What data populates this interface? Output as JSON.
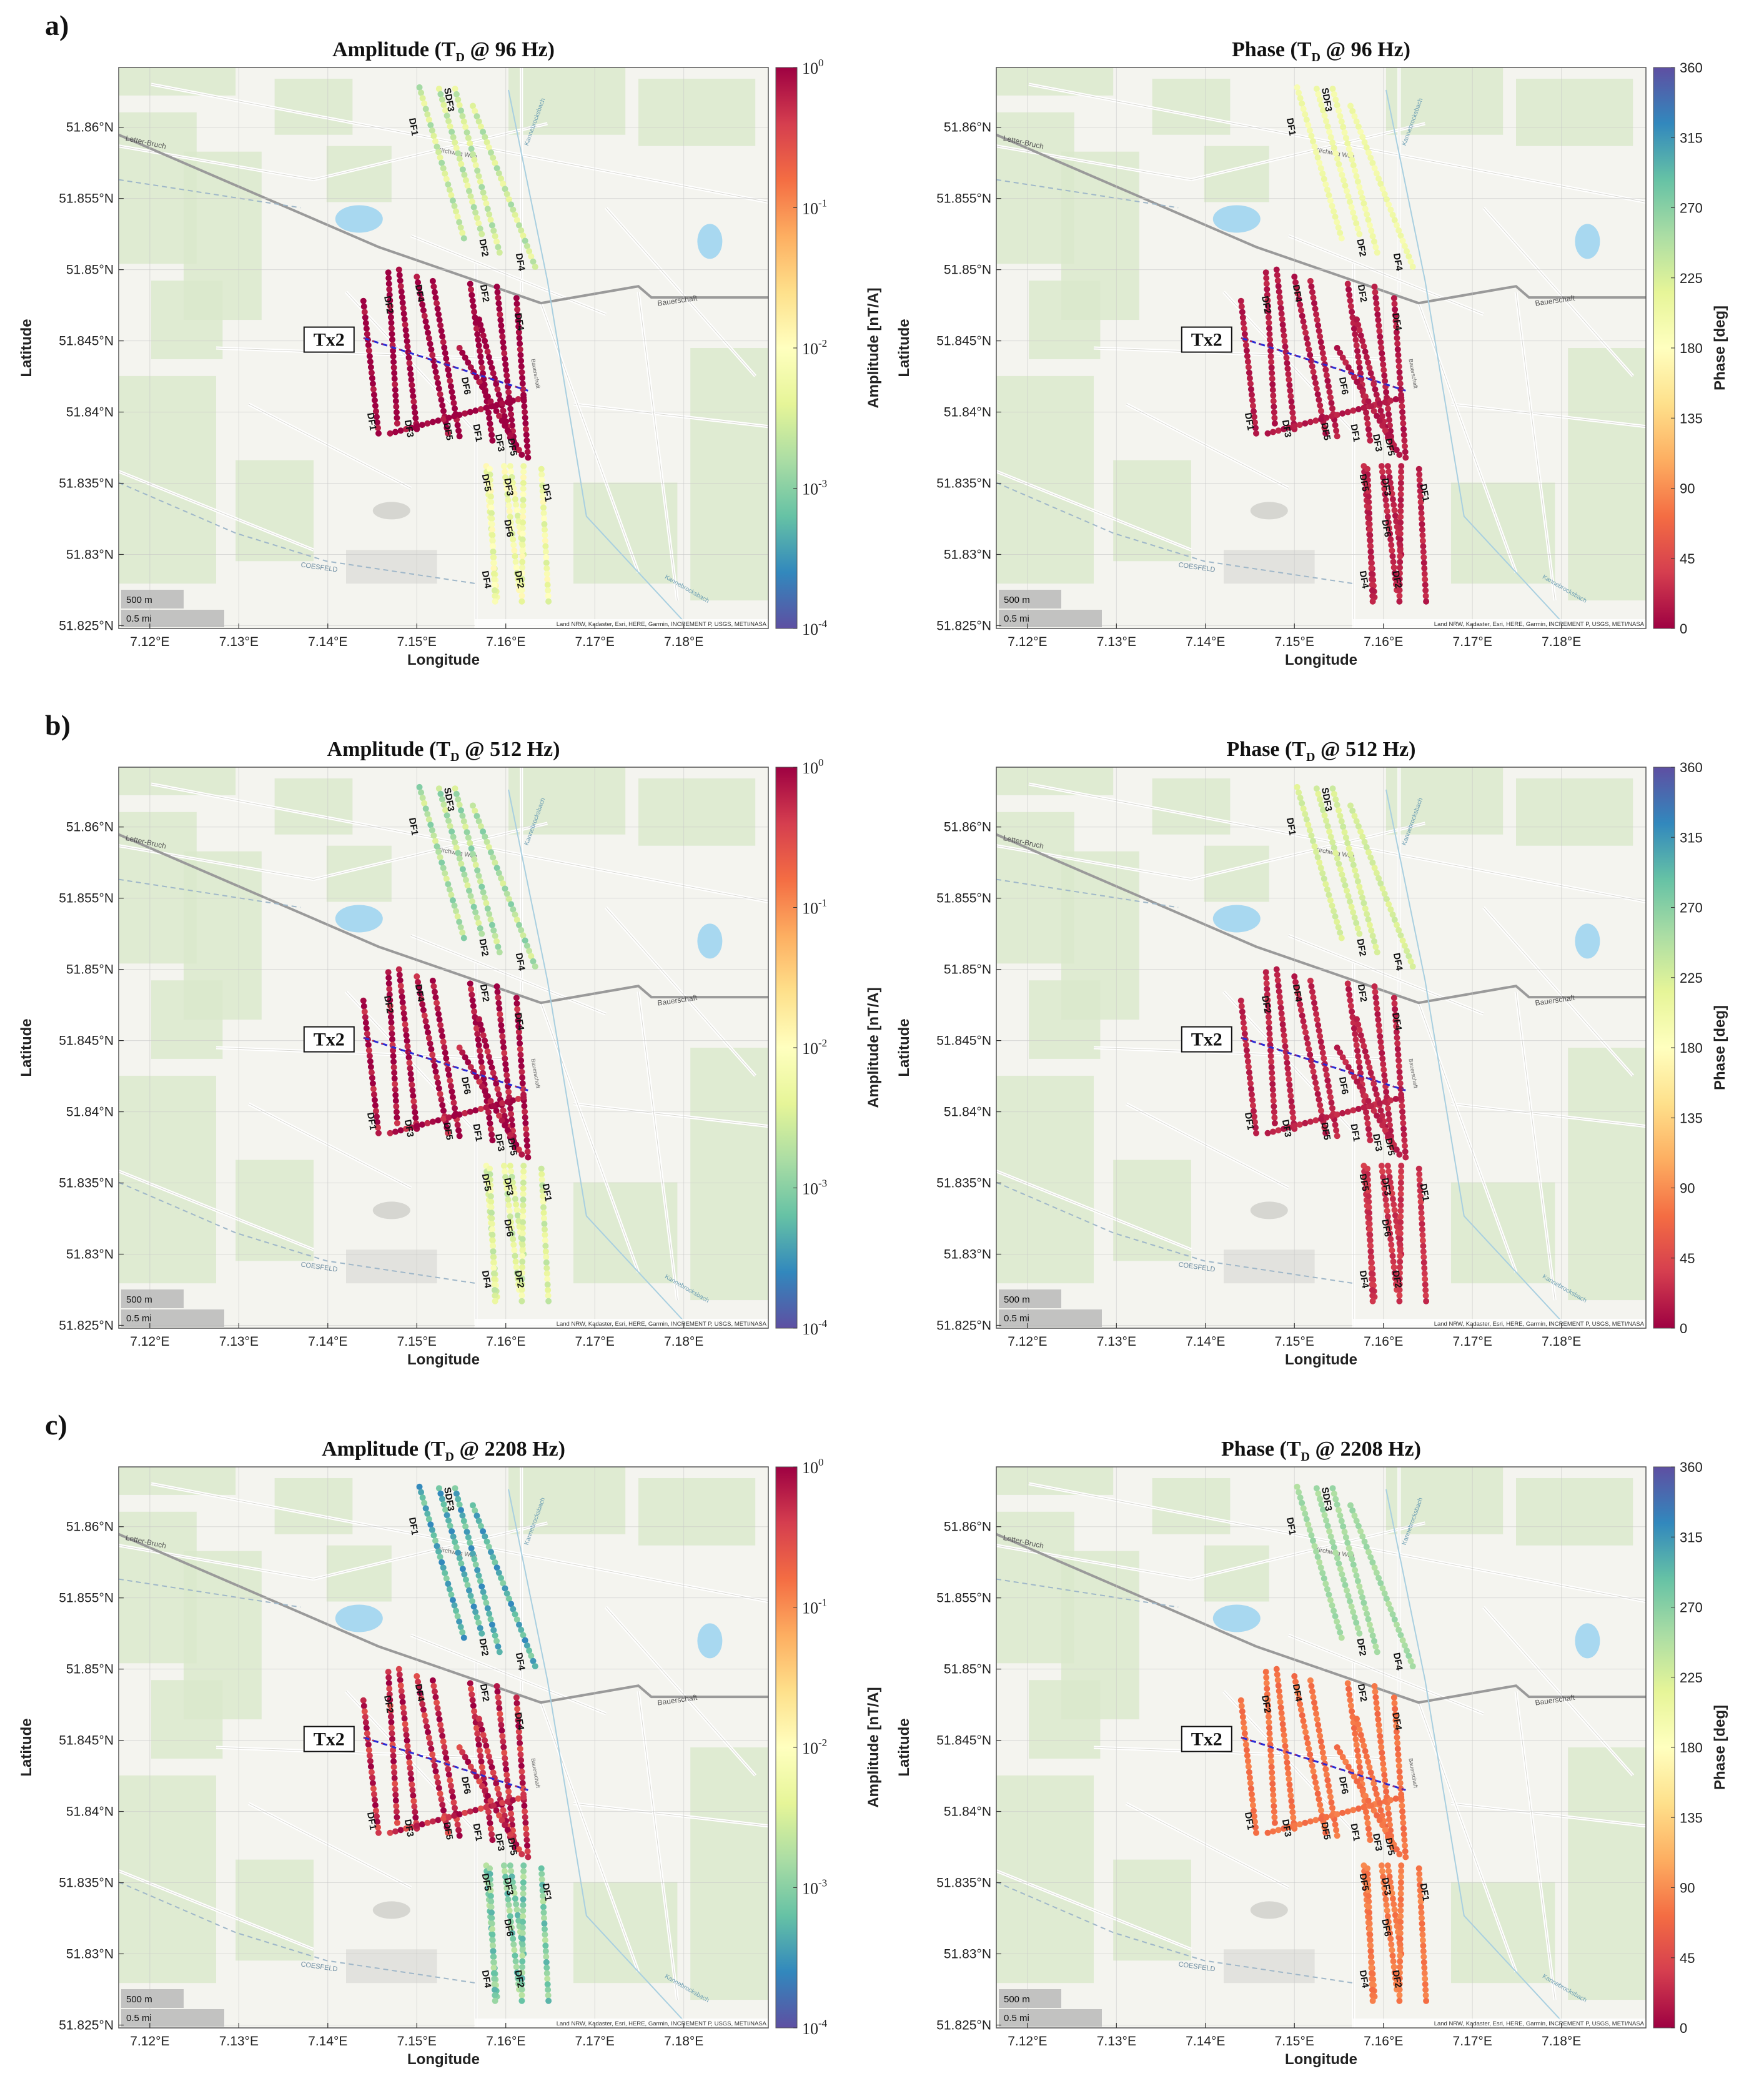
{
  "figure": {
    "axis_labels": {
      "x": "Longitude",
      "y": "Latitude"
    },
    "x_ticks": [
      "7.12°E",
      "7.13°E",
      "7.14°E",
      "7.15°E",
      "7.16°E",
      "7.17°E",
      "7.18°E"
    ],
    "y_ticks": [
      "51.825°N",
      "51.83°N",
      "51.835°N",
      "51.84°N",
      "51.845°N",
      "51.85°N",
      "51.855°N",
      "51.86°N"
    ],
    "x_range_deg": [
      7.1165,
      7.1895
    ],
    "y_range_deg": [
      51.8248,
      51.8642
    ],
    "amplitude_colorbar": {
      "label": "Amplitude [nT/A]",
      "tick_base": "10",
      "tick_exponents": [
        "0",
        "-1",
        "-2",
        "-3",
        "-4"
      ]
    },
    "phase_colorbar": {
      "label": "Phase [deg]",
      "ticks": [
        "360",
        "315",
        "270",
        "225",
        "180",
        "135",
        "90",
        "45",
        "0"
      ]
    },
    "map_text": {
      "tx_label": "Tx2",
      "scale_m": "500 m",
      "scale_mi": "0.5 mi",
      "attribution": "Land NRW, Kadaster, Esri, HERE, Garmin, INCREMENT P, USGS, METI/NASA",
      "road_letter": "Letter-Bruch",
      "road_bauer": "Bauerschaft",
      "road_coesfeld": "COESFELD",
      "creek": "Kannebrocksbach",
      "street_weg": "Kirchweg Weg",
      "street_bauer_v": "Bauerschaft"
    },
    "lines": [
      {
        "name": "DF1",
        "group": "north",
        "label": "DF1",
        "lon1": 7.1503,
        "lat1": 51.8628,
        "lon2": 7.1553,
        "lat2": 51.8522,
        "label_lon": 7.1493,
        "label_lat": 51.86
      },
      {
        "name": "DF2",
        "group": "north",
        "label": "DF2",
        "lon1": 7.1543,
        "lat1": 51.8627,
        "lon2": 7.1593,
        "lat2": 51.8512,
        "label_lon": 7.1572,
        "label_lat": 51.8515
      },
      {
        "name": "DF3",
        "group": "north",
        "label": "SDF3",
        "lon1": 7.1525,
        "lat1": 51.8627,
        "lon2": 7.1573,
        "lat2": 51.8525,
        "label_lon": 7.1533,
        "label_lat": 51.8619
      },
      {
        "name": "DF4",
        "group": "north",
        "label": "DF4",
        "lon1": 7.1563,
        "lat1": 51.8615,
        "lon2": 7.1633,
        "lat2": 51.8502,
        "label_lon": 7.1613,
        "label_lat": 51.8505
      },
      {
        "name": "DF1",
        "group": "center",
        "label": "DF1",
        "lon1": 7.144,
        "lat1": 51.8478,
        "lon2": 7.1457,
        "lat2": 51.8385,
        "label_lon": 7.1446,
        "label_lat": 51.8393
      },
      {
        "name": "DF2",
        "group": "center",
        "label": "DF2",
        "lon1": 7.1468,
        "lat1": 51.8498,
        "lon2": 7.1478,
        "lat2": 51.8392,
        "label_lon": 7.1465,
        "label_lat": 51.8475
      },
      {
        "name": "DF3",
        "group": "center",
        "label": "DF3",
        "lon1": 7.148,
        "lat1": 51.85,
        "lon2": 7.15,
        "lat2": 51.8388,
        "label_lon": 7.1488,
        "label_lat": 51.8388
      },
      {
        "name": "DF4",
        "group": "center",
        "label": "DF4",
        "lon1": 7.15,
        "lat1": 51.8495,
        "lon2": 7.1535,
        "lat2": 51.8385,
        "label_lon": 7.15,
        "label_lat": 51.8483
      },
      {
        "name": "DF5",
        "group": "center",
        "label": "DF5",
        "lon1": 7.1518,
        "lat1": 51.8492,
        "lon2": 7.1548,
        "lat2": 51.8383,
        "label_lon": 7.1532,
        "label_lat": 51.8386
      },
      {
        "name": "DF2",
        "group": "center",
        "label": "DF2",
        "lon1": 7.156,
        "lat1": 51.849,
        "lon2": 7.1585,
        "lat2": 51.838,
        "label_lon": 7.1573,
        "label_lat": 51.8483
      },
      {
        "name": "DF3",
        "group": "center",
        "label": "DF3",
        "lon1": 7.159,
        "lat1": 51.8488,
        "lon2": 7.161,
        "lat2": 51.8375,
        "label_lon": 7.159,
        "label_lat": 51.8378
      },
      {
        "name": "DF4",
        "group": "center",
        "label": "DF4",
        "lon1": 7.1612,
        "lat1": 51.848,
        "lon2": 7.1625,
        "lat2": 51.8368,
        "label_lon": 7.1612,
        "label_lat": 51.8463
      },
      {
        "name": "DF1",
        "group": "center",
        "label": "DF1",
        "lon1": 7.157,
        "lat1": 51.8465,
        "lon2": 7.1605,
        "lat2": 51.8382,
        "label_lon": 7.1565,
        "label_lat": 51.8385
      },
      {
        "name": "DF6",
        "group": "center",
        "label": "DF6",
        "lon1": 7.147,
        "lat1": 51.8385,
        "lon2": 7.162,
        "lat2": 51.841,
        "label_lon": 7.1552,
        "label_lat": 51.8418
      },
      {
        "name": "DF5",
        "group": "center",
        "label": "DF5",
        "lon1": 7.1548,
        "lat1": 51.8445,
        "lon2": 7.1618,
        "lat2": 51.837,
        "label_lon": 7.1604,
        "label_lat": 51.8375
      },
      {
        "name": "DF5",
        "group": "south",
        "label": "DF5",
        "lon1": 7.1578,
        "lat1": 51.8362,
        "lon2": 7.159,
        "lat2": 51.827,
        "label_lon": 7.1575,
        "label_lat": 51.835
      },
      {
        "name": "DF4",
        "group": "south",
        "label": "DF4",
        "lon1": 7.1582,
        "lat1": 51.836,
        "lon2": 7.1588,
        "lat2": 51.8267,
        "label_lon": 7.1575,
        "label_lat": 51.8282
      },
      {
        "name": "DF3",
        "group": "south",
        "label": "DF3",
        "lon1": 7.1598,
        "lat1": 51.8362,
        "lon2": 7.1615,
        "lat2": 51.8275,
        "label_lon": 7.16,
        "label_lat": 51.8347
      },
      {
        "name": "DF6",
        "group": "south",
        "label": "DF6",
        "lon1": 7.1605,
        "lat1": 51.8362,
        "lon2": 7.162,
        "lat2": 51.83,
        "label_lon": 7.16,
        "label_lat": 51.8318
      },
      {
        "name": "DF2",
        "group": "south",
        "label": "DF2",
        "lon1": 7.162,
        "lat1": 51.8362,
        "lon2": 7.1618,
        "lat2": 51.8267,
        "label_lon": 7.1612,
        "label_lat": 51.8282
      },
      {
        "name": "DF1",
        "group": "south",
        "label": "DF1",
        "lon1": 7.164,
        "lat1": 51.836,
        "lon2": 7.1648,
        "lat2": 51.8267,
        "label_lon": 7.1643,
        "label_lat": 51.8343
      }
    ],
    "tx_wire": {
      "lon1": 7.144,
      "lat1": 51.8452,
      "lon2": 7.1625,
      "lat2": 51.8415
    },
    "tx_label_anchor": {
      "lon": 7.144,
      "lat": 51.845
    }
  },
  "rows": [
    {
      "letter": "a)",
      "freq": "96 Hz",
      "amp_title": {
        "prefix": "Amplitude (T",
        "sub": "D",
        "suffix": " @ 96 Hz)"
      },
      "phase_title": {
        "prefix": "Phase (T",
        "sub": "D",
        "suffix": " @ 96 Hz)"
      },
      "amp_log10": {
        "north": -2.55,
        "center": 0.1,
        "south": -2.2
      },
      "phase_deg": {
        "north": 200,
        "center": 15,
        "south": 20
      }
    },
    {
      "letter": "b)",
      "freq": "512 Hz",
      "amp_title": {
        "prefix": "Amplitude (T",
        "sub": "D",
        "suffix": " @ 512 Hz)"
      },
      "phase_title": {
        "prefix": "Phase (T",
        "sub": "D",
        "suffix": " @ 512 Hz)"
      },
      "amp_log10": {
        "north": -2.75,
        "center": -0.05,
        "south": -2.4
      },
      "phase_deg": {
        "north": 225,
        "center": 20,
        "south": 30
      }
    },
    {
      "letter": "c)",
      "freq": "2208 Hz",
      "amp_title": {
        "prefix": "Amplitude (T",
        "sub": "D",
        "suffix": " @ 2208 Hz)"
      },
      "phase_title": {
        "prefix": "Phase (T",
        "sub": "D",
        "suffix": " @ 2208 Hz)"
      },
      "amp_log10": {
        "north": -3.3,
        "center": -0.25,
        "south": -3.0
      },
      "phase_deg": {
        "north": 255,
        "center": 75,
        "south": 80
      }
    }
  ]
}
